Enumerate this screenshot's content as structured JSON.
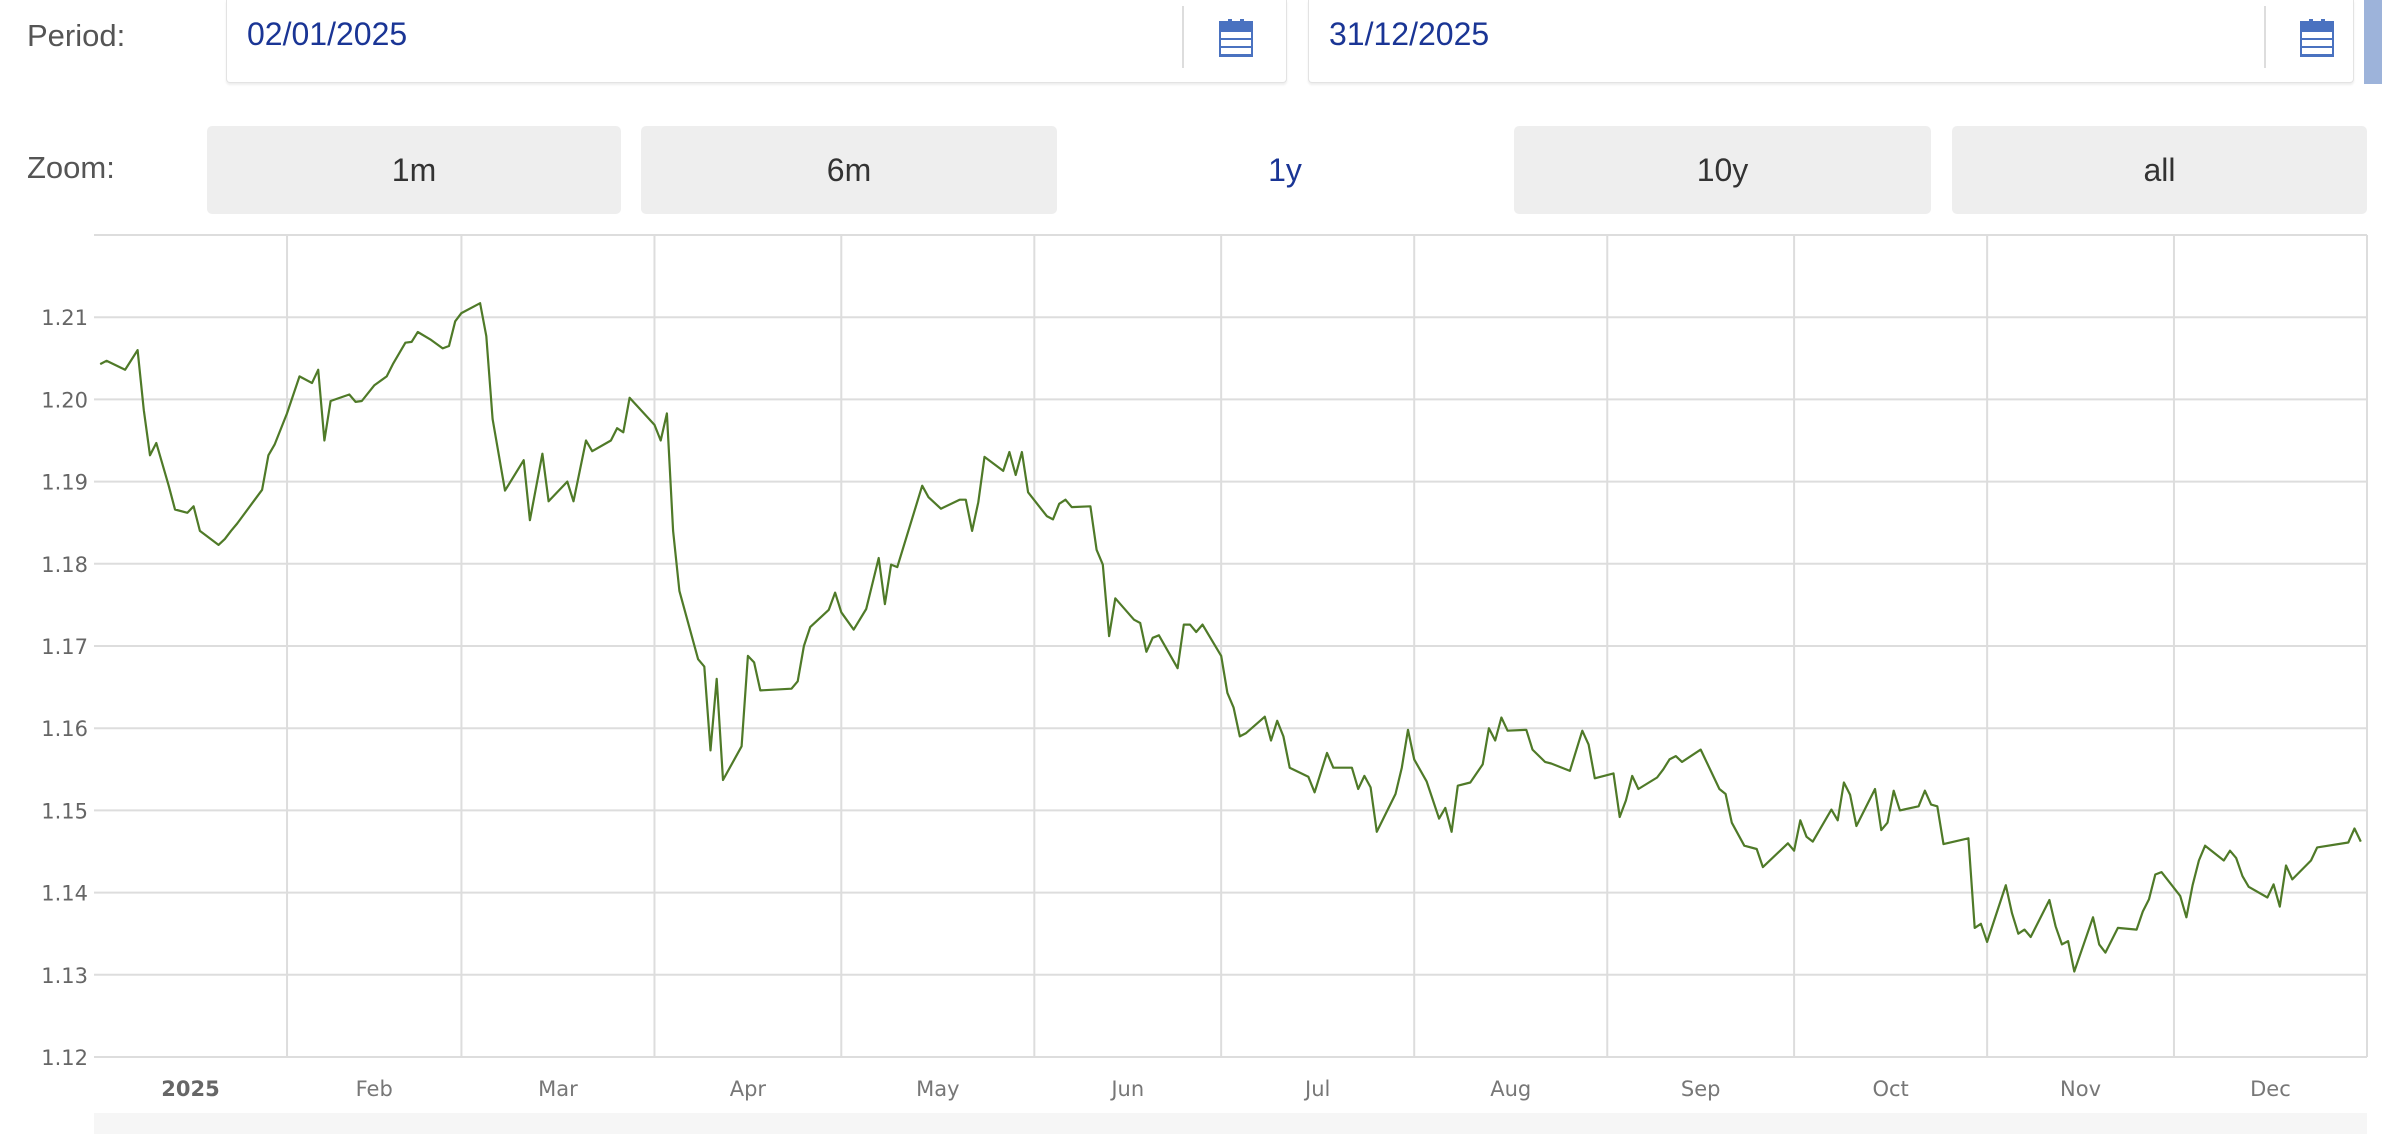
{
  "period": {
    "label": "Period:",
    "start": "02/01/2025",
    "end": "31/12/2025",
    "calendar_icon": "calendar-icon"
  },
  "zoom": {
    "label": "Zoom:",
    "buttons": [
      "1m",
      "6m",
      "1y",
      "10y",
      "all"
    ],
    "active": "1y"
  },
  "colors": {
    "line": "#4f7a28",
    "accent": "#1a3595",
    "calendar": "#4a72c0",
    "grid": "#dddddd"
  },
  "chart_data": {
    "type": "line",
    "title": "",
    "xlabel": "",
    "ylabel": "",
    "ylim": [
      1.12,
      1.22
    ],
    "xlim": [
      "2025-01-01",
      "2025-12-31"
    ],
    "grid": true,
    "y_ticks": [
      "1.12",
      "1.13",
      "1.14",
      "1.15",
      "1.16",
      "1.17",
      "1.18",
      "1.19",
      "1.20",
      "1.21"
    ],
    "x_ticks": [
      "2025",
      "Feb",
      "Mar",
      "Apr",
      "May",
      "Jun",
      "Jul",
      "Aug",
      "Sep",
      "Oct",
      "Nov",
      "Dec"
    ],
    "series": [
      {
        "points": [
          [
            "2025-01-02",
            1.2043
          ],
          [
            "2025-01-03",
            1.2047
          ],
          [
            "2025-01-06",
            1.2036
          ],
          [
            "2025-01-08",
            1.206
          ],
          [
            "2025-01-09",
            1.1987
          ],
          [
            "2025-01-10",
            1.1932
          ],
          [
            "2025-01-11",
            1.1947
          ],
          [
            "2025-01-13",
            1.1895
          ],
          [
            "2025-01-14",
            1.1866
          ],
          [
            "2025-01-16",
            1.1862
          ],
          [
            "2025-01-17",
            1.187
          ],
          [
            "2025-01-18",
            1.184
          ],
          [
            "2025-01-21",
            1.1823
          ],
          [
            "2025-01-22",
            1.183
          ],
          [
            "2025-01-23",
            1.184
          ],
          [
            "2025-01-24",
            1.1849
          ],
          [
            "2025-01-28",
            1.189
          ],
          [
            "2025-01-29",
            1.1932
          ],
          [
            "2025-01-30",
            1.1945
          ],
          [
            "2025-02-01",
            1.1983
          ],
          [
            "2025-02-03",
            1.2028
          ],
          [
            "2025-02-05",
            1.202
          ],
          [
            "2025-02-06",
            1.2036
          ],
          [
            "2025-02-07",
            1.195
          ],
          [
            "2025-02-08",
            1.1998
          ],
          [
            "2025-02-11",
            1.2006
          ],
          [
            "2025-02-12",
            1.1997
          ],
          [
            "2025-02-13",
            1.1998
          ],
          [
            "2025-02-15",
            1.2017
          ],
          [
            "2025-02-17",
            1.2028
          ],
          [
            "2025-02-18",
            1.2043
          ],
          [
            "2025-02-20",
            1.2069
          ],
          [
            "2025-02-21",
            1.207
          ],
          [
            "2025-02-22",
            1.2082
          ],
          [
            "2025-02-24",
            1.2073
          ],
          [
            "2025-02-26",
            1.2062
          ],
          [
            "2025-02-27",
            1.2065
          ],
          [
            "2025-02-28",
            1.2095
          ],
          [
            "2025-03-01",
            1.2105
          ],
          [
            "2025-03-04",
            1.2117
          ],
          [
            "2025-03-05",
            1.2077
          ],
          [
            "2025-03-06",
            1.1976
          ],
          [
            "2025-03-08",
            1.1889
          ],
          [
            "2025-03-11",
            1.1926
          ],
          [
            "2025-03-12",
            1.1853
          ],
          [
            "2025-03-14",
            1.1934
          ],
          [
            "2025-03-15",
            1.1876
          ],
          [
            "2025-03-18",
            1.19
          ],
          [
            "2025-03-19",
            1.1876
          ],
          [
            "2025-03-21",
            1.195
          ],
          [
            "2025-03-22",
            1.1937
          ],
          [
            "2025-03-25",
            1.195
          ],
          [
            "2025-03-26",
            1.1965
          ],
          [
            "2025-03-27",
            1.196
          ],
          [
            "2025-03-28",
            1.2002
          ],
          [
            "2025-04-01",
            1.1969
          ],
          [
            "2025-04-02",
            1.195
          ],
          [
            "2025-04-03",
            1.1983
          ],
          [
            "2025-04-04",
            1.184
          ],
          [
            "2025-04-05",
            1.1767
          ],
          [
            "2025-04-08",
            1.1684
          ],
          [
            "2025-04-09",
            1.1675
          ],
          [
            "2025-04-10",
            1.1573
          ],
          [
            "2025-04-11",
            1.166
          ],
          [
            "2025-04-12",
            1.1537
          ],
          [
            "2025-04-15",
            1.1578
          ],
          [
            "2025-04-16",
            1.1688
          ],
          [
            "2025-04-17",
            1.168
          ],
          [
            "2025-04-18",
            1.1646
          ],
          [
            "2025-04-23",
            1.1648
          ],
          [
            "2025-04-24",
            1.1657
          ],
          [
            "2025-04-25",
            1.17
          ],
          [
            "2025-04-26",
            1.1723
          ],
          [
            "2025-04-29",
            1.1744
          ],
          [
            "2025-04-30",
            1.1765
          ],
          [
            "2025-05-01",
            1.1741
          ],
          [
            "2025-05-03",
            1.172
          ],
          [
            "2025-05-05",
            1.1745
          ],
          [
            "2025-05-07",
            1.1807
          ],
          [
            "2025-05-08",
            1.1751
          ],
          [
            "2025-05-09",
            1.1799
          ],
          [
            "2025-05-10",
            1.1796
          ],
          [
            "2025-05-14",
            1.1895
          ],
          [
            "2025-05-15",
            1.1881
          ],
          [
            "2025-05-17",
            1.1867
          ],
          [
            "2025-05-20",
            1.1878
          ],
          [
            "2025-05-21",
            1.1878
          ],
          [
            "2025-05-22",
            1.184
          ],
          [
            "2025-05-23",
            1.1875
          ],
          [
            "2025-05-24",
            1.193
          ],
          [
            "2025-05-27",
            1.1913
          ],
          [
            "2025-05-28",
            1.1936
          ],
          [
            "2025-05-29",
            1.1908
          ],
          [
            "2025-05-30",
            1.1936
          ],
          [
            "2025-05-31",
            1.1887
          ],
          [
            "2025-06-03",
            1.1858
          ],
          [
            "2025-06-04",
            1.1854
          ],
          [
            "2025-06-05",
            1.1873
          ],
          [
            "2025-06-06",
            1.1878
          ],
          [
            "2025-06-07",
            1.1869
          ],
          [
            "2025-06-10",
            1.187
          ],
          [
            "2025-06-11",
            1.1817
          ],
          [
            "2025-06-12",
            1.1799
          ],
          [
            "2025-06-13",
            1.1712
          ],
          [
            "2025-06-14",
            1.1758
          ],
          [
            "2025-06-17",
            1.1732
          ],
          [
            "2025-06-18",
            1.1728
          ],
          [
            "2025-06-19",
            1.1693
          ],
          [
            "2025-06-20",
            1.171
          ],
          [
            "2025-06-21",
            1.1713
          ],
          [
            "2025-06-24",
            1.1673
          ],
          [
            "2025-06-25",
            1.1726
          ],
          [
            "2025-06-26",
            1.1726
          ],
          [
            "2025-06-27",
            1.1717
          ],
          [
            "2025-06-28",
            1.1726
          ],
          [
            "2025-07-01",
            1.1688
          ],
          [
            "2025-07-02",
            1.1643
          ],
          [
            "2025-07-03",
            1.1625
          ],
          [
            "2025-07-04",
            1.159
          ],
          [
            "2025-07-05",
            1.1594
          ],
          [
            "2025-07-08",
            1.1614
          ],
          [
            "2025-07-09",
            1.1585
          ],
          [
            "2025-07-10",
            1.1609
          ],
          [
            "2025-07-11",
            1.159
          ],
          [
            "2025-07-12",
            1.1552
          ],
          [
            "2025-07-15",
            1.1541
          ],
          [
            "2025-07-16",
            1.1522
          ],
          [
            "2025-07-18",
            1.157
          ],
          [
            "2025-07-19",
            1.1552
          ],
          [
            "2025-07-22",
            1.1552
          ],
          [
            "2025-07-23",
            1.1526
          ],
          [
            "2025-07-24",
            1.1542
          ],
          [
            "2025-07-25",
            1.1528
          ],
          [
            "2025-07-26",
            1.1474
          ],
          [
            "2025-07-29",
            1.152
          ],
          [
            "2025-07-30",
            1.1552
          ],
          [
            "2025-07-31",
            1.1598
          ],
          [
            "2025-08-01",
            1.1562
          ],
          [
            "2025-08-03",
            1.1535
          ],
          [
            "2025-08-05",
            1.149
          ],
          [
            "2025-08-06",
            1.1503
          ],
          [
            "2025-08-07",
            1.1474
          ],
          [
            "2025-08-08",
            1.153
          ],
          [
            "2025-08-10",
            1.1534
          ],
          [
            "2025-08-12",
            1.1556
          ],
          [
            "2025-08-13",
            1.16
          ],
          [
            "2025-08-14",
            1.1585
          ],
          [
            "2025-08-15",
            1.1613
          ],
          [
            "2025-08-16",
            1.1597
          ],
          [
            "2025-08-19",
            1.1598
          ],
          [
            "2025-08-20",
            1.1574
          ],
          [
            "2025-08-22",
            1.1559
          ],
          [
            "2025-08-23",
            1.1557
          ],
          [
            "2025-08-26",
            1.1548
          ],
          [
            "2025-08-28",
            1.1597
          ],
          [
            "2025-08-29",
            1.158
          ],
          [
            "2025-08-30",
            1.1539
          ],
          [
            "2025-09-02",
            1.1545
          ],
          [
            "2025-09-03",
            1.1492
          ],
          [
            "2025-09-04",
            1.1512
          ],
          [
            "2025-09-05",
            1.1542
          ],
          [
            "2025-09-06",
            1.1526
          ],
          [
            "2025-09-09",
            1.154
          ],
          [
            "2025-09-10",
            1.155
          ],
          [
            "2025-09-11",
            1.1562
          ],
          [
            "2025-09-12",
            1.1566
          ],
          [
            "2025-09-13",
            1.1559
          ],
          [
            "2025-09-16",
            1.1574
          ],
          [
            "2025-09-19",
            1.1526
          ],
          [
            "2025-09-20",
            1.152
          ],
          [
            "2025-09-21",
            1.1485
          ],
          [
            "2025-09-23",
            1.1457
          ],
          [
            "2025-09-25",
            1.1453
          ],
          [
            "2025-09-26",
            1.1431
          ],
          [
            "2025-09-30",
            1.146
          ],
          [
            "2025-10-01",
            1.1451
          ],
          [
            "2025-10-02",
            1.1488
          ],
          [
            "2025-10-03",
            1.1468
          ],
          [
            "2025-10-04",
            1.1462
          ],
          [
            "2025-10-07",
            1.1501
          ],
          [
            "2025-10-08",
            1.1488
          ],
          [
            "2025-10-09",
            1.1534
          ],
          [
            "2025-10-10",
            1.1519
          ],
          [
            "2025-10-11",
            1.1481
          ],
          [
            "2025-10-14",
            1.1526
          ],
          [
            "2025-10-15",
            1.1476
          ],
          [
            "2025-10-16",
            1.1485
          ],
          [
            "2025-10-17",
            1.1524
          ],
          [
            "2025-10-18",
            1.15
          ],
          [
            "2025-10-21",
            1.1505
          ],
          [
            "2025-10-22",
            1.1524
          ],
          [
            "2025-10-23",
            1.1507
          ],
          [
            "2025-10-24",
            1.1505
          ],
          [
            "2025-10-25",
            1.1459
          ],
          [
            "2025-10-29",
            1.1466
          ],
          [
            "2025-10-30",
            1.1357
          ],
          [
            "2025-10-31",
            1.1362
          ],
          [
            "2025-11-01",
            1.134
          ],
          [
            "2025-11-04",
            1.1409
          ],
          [
            "2025-11-05",
            1.1375
          ],
          [
            "2025-11-06",
            1.135
          ],
          [
            "2025-11-07",
            1.1355
          ],
          [
            "2025-11-08",
            1.1346
          ],
          [
            "2025-11-11",
            1.1391
          ],
          [
            "2025-11-12",
            1.1359
          ],
          [
            "2025-11-13",
            1.1337
          ],
          [
            "2025-11-14",
            1.1341
          ],
          [
            "2025-11-15",
            1.1304
          ],
          [
            "2025-11-18",
            1.137
          ],
          [
            "2025-11-19",
            1.1337
          ],
          [
            "2025-11-20",
            1.1327
          ],
          [
            "2025-11-22",
            1.1357
          ],
          [
            "2025-11-25",
            1.1355
          ],
          [
            "2025-11-26",
            1.1377
          ],
          [
            "2025-11-27",
            1.1392
          ],
          [
            "2025-11-28",
            1.1422
          ],
          [
            "2025-11-29",
            1.1425
          ],
          [
            "2025-12-02",
            1.1396
          ],
          [
            "2025-12-03",
            1.137
          ],
          [
            "2025-12-04",
            1.1409
          ],
          [
            "2025-12-05",
            1.1439
          ],
          [
            "2025-12-06",
            1.1457
          ],
          [
            "2025-12-09",
            1.1439
          ],
          [
            "2025-12-10",
            1.1451
          ],
          [
            "2025-12-11",
            1.1442
          ],
          [
            "2025-12-12",
            1.142
          ],
          [
            "2025-12-13",
            1.1407
          ],
          [
            "2025-12-16",
            1.1394
          ],
          [
            "2025-12-17",
            1.141
          ],
          [
            "2025-12-18",
            1.1383
          ],
          [
            "2025-12-19",
            1.1433
          ],
          [
            "2025-12-20",
            1.1416
          ],
          [
            "2025-12-23",
            1.1439
          ],
          [
            "2025-12-24",
            1.1455
          ],
          [
            "2025-12-29",
            1.1461
          ],
          [
            "2025-12-30",
            1.1478
          ],
          [
            "2025-12-31",
            1.1462
          ]
        ]
      }
    ]
  }
}
